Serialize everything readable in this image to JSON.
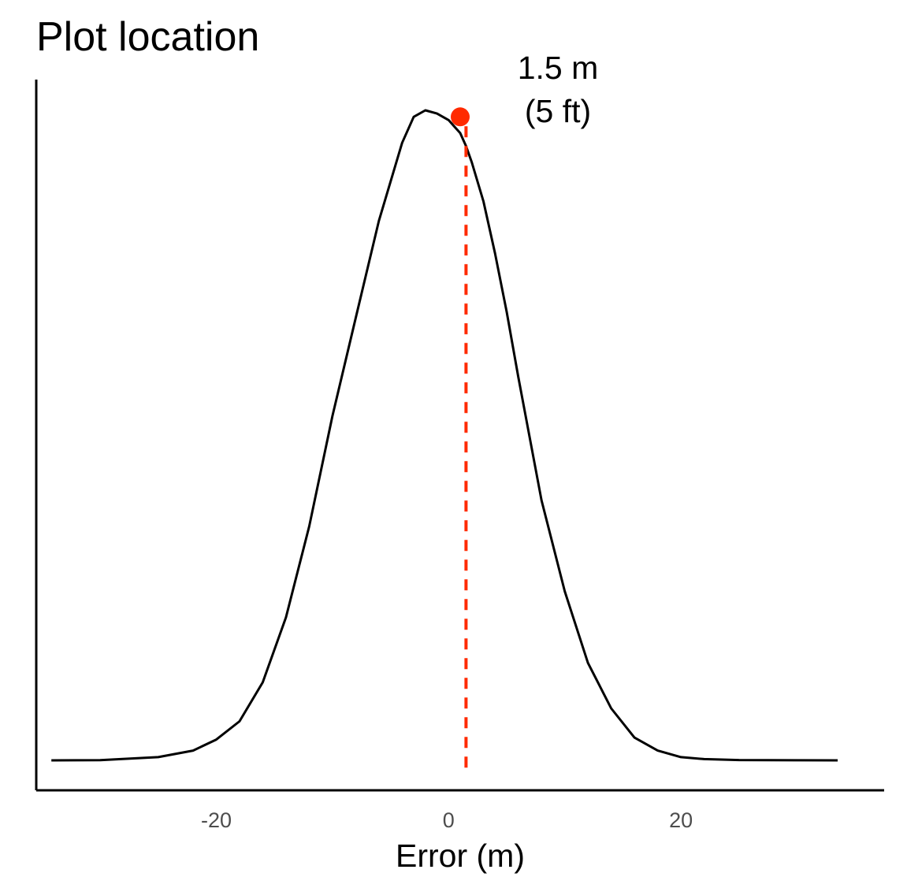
{
  "chart_data": {
    "type": "area",
    "title": "Plot location",
    "xlabel": "Error (m)",
    "ylabel": "",
    "xlim": [
      -35.5,
      37.5
    ],
    "ylim": [
      0,
      1
    ],
    "x_ticks": [
      {
        "value": -20,
        "label": "-20"
      },
      {
        "value": 0,
        "label": "0"
      },
      {
        "value": 20,
        "label": "20"
      }
    ],
    "y_ticks_shown": false,
    "grid": false,
    "legend": "none",
    "series": [
      {
        "x": [
          -34.2,
          -30,
          -25,
          -22,
          -20,
          -18,
          -16,
          -14,
          -12,
          -10,
          -8,
          -6,
          -4,
          -3,
          -2,
          -1,
          0,
          0.5,
          1,
          1.5,
          2,
          3,
          4,
          5,
          6,
          8,
          10,
          12,
          14,
          16,
          18,
          20,
          22,
          25,
          30,
          33.5
        ],
        "y": [
          0,
          0.0003,
          0.005,
          0.015,
          0.032,
          0.06,
          0.12,
          0.22,
          0.36,
          0.53,
          0.68,
          0.83,
          0.95,
          0.99,
          1.0,
          0.995,
          0.985,
          0.975,
          0.965,
          0.945,
          0.92,
          0.86,
          0.78,
          0.69,
          0.59,
          0.4,
          0.26,
          0.15,
          0.08,
          0.035,
          0.015,
          0.005,
          0.002,
          0.0005,
          0.0001,
          0
        ]
      }
    ],
    "marker": {
      "x": 1.0,
      "y": 0.99
    },
    "reference_line": {
      "x": 1.5
    },
    "annotation_lines": [
      "1.5 m",
      "(5 ft)"
    ]
  },
  "colors": {
    "curve": "#000000",
    "axis": "#000000",
    "highlight": "#ff2a00",
    "tick_text": "#4d4d4d"
  }
}
